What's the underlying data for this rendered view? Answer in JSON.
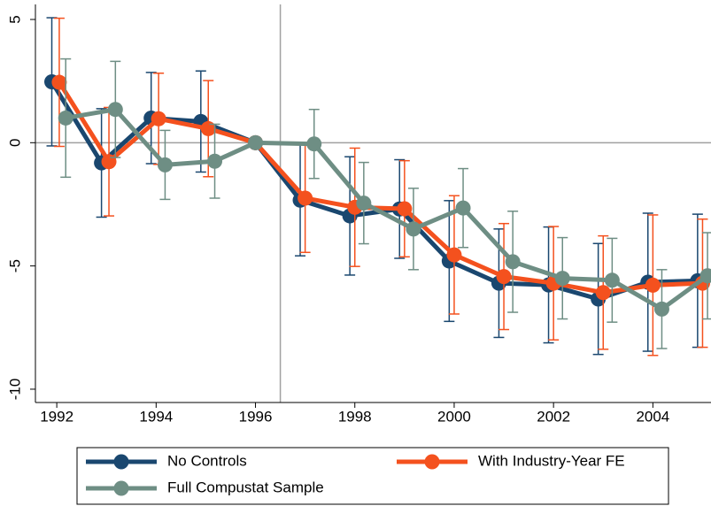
{
  "chart_data": {
    "type": "line",
    "xlim": [
      1991.57,
      2005.17
    ],
    "xticks": [
      1992,
      1994,
      1996,
      1998,
      2000,
      2002,
      2004
    ],
    "ylim": [
      -10.54,
      5.61
    ],
    "yticks": [
      -10,
      -5,
      0,
      5
    ],
    "hline": 0,
    "vline": 1996.5,
    "legend": "bottom",
    "series": [
      {
        "name": "No Controls",
        "color": "#1a476f",
        "x": [
          1991.9,
          1992.9,
          1993.9,
          1994.9,
          1996,
          1996.9,
          1997.9,
          1998.9,
          1999.9,
          2000.9,
          2001.9,
          2002.9,
          2003.9,
          2004.9
        ],
        "values": [
          2.47,
          -0.82,
          1.0,
          0.86,
          0,
          -2.33,
          -2.97,
          -2.69,
          -4.8,
          -5.7,
          -5.77,
          -6.34,
          -5.66,
          -5.6
        ],
        "errors": [
          2.6,
          2.2,
          1.85,
          2.05,
          0,
          2.26,
          2.4,
          2.0,
          2.45,
          2.2,
          2.35,
          2.25,
          2.8,
          2.7
        ]
      },
      {
        "name": "With Industry-Year FE",
        "color": "#f4511e",
        "x": [
          1992.05,
          1993.05,
          1994.05,
          1995.05,
          1996,
          1997.0,
          1998.0,
          1999.0,
          2000.0,
          2001.0,
          2002.0,
          2003.0,
          2004.0,
          2005.0
        ],
        "values": [
          2.45,
          -0.77,
          0.97,
          0.57,
          0,
          -2.25,
          -2.62,
          -2.68,
          -4.55,
          -5.43,
          -5.7,
          -6.08,
          -5.78,
          -5.7
        ],
        "errors": [
          2.6,
          2.2,
          1.85,
          1.95,
          0,
          2.2,
          2.4,
          1.95,
          2.4,
          2.15,
          2.3,
          2.3,
          2.85,
          2.6
        ]
      },
      {
        "name": "Full Compustat Sample",
        "color": "#6e8e84",
        "x": [
          1992.18,
          1993.18,
          1994.18,
          1995.18,
          1996,
          1997.18,
          1998.18,
          1999.18,
          2000.18,
          2001.18,
          2002.18,
          2003.18,
          2004.18,
          2005.1
        ],
        "values": [
          1.0,
          1.35,
          -0.9,
          -0.75,
          0,
          -0.05,
          -2.45,
          -3.5,
          -2.65,
          -4.83,
          -5.5,
          -5.58,
          -6.75,
          -5.4
        ],
        "errors": [
          2.4,
          1.95,
          1.4,
          1.5,
          0,
          1.4,
          1.65,
          1.65,
          1.6,
          2.05,
          1.65,
          1.7,
          1.6,
          1.75
        ]
      }
    ]
  }
}
